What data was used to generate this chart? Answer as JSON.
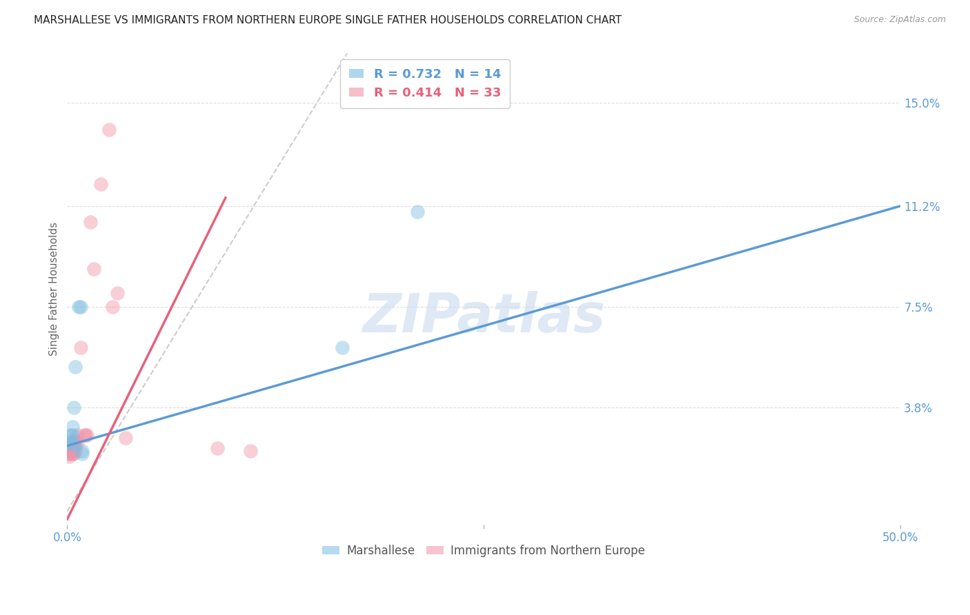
{
  "title": "MARSHALLESE VS IMMIGRANTS FROM NORTHERN EUROPE SINGLE FATHER HOUSEHOLDS CORRELATION CHART",
  "source": "Source: ZipAtlas.com",
  "ylabel_label": "Single Father Households",
  "watermark": "ZIPatlas",
  "legend1_label": "R = 0.732   N = 14",
  "legend2_label": "R = 0.414   N = 33",
  "blue_color": "#7bbde0",
  "pink_color": "#f093a8",
  "blue_line_color": "#5b9bd5",
  "pink_line_color": "#e8607a",
  "diagonal_color": "#cccccc",
  "marshallese_x": [
    0.001,
    0.002,
    0.002,
    0.003,
    0.003,
    0.004,
    0.004,
    0.005,
    0.007,
    0.008,
    0.009,
    0.009,
    0.165,
    0.21
  ],
  "marshallese_y": [
    0.026,
    0.025,
    0.028,
    0.028,
    0.031,
    0.024,
    0.038,
    0.053,
    0.075,
    0.075,
    0.022,
    0.021,
    0.06,
    0.11
  ],
  "northern_europe_x": [
    0.001,
    0.001,
    0.001,
    0.001,
    0.002,
    0.002,
    0.002,
    0.002,
    0.002,
    0.003,
    0.003,
    0.003,
    0.004,
    0.004,
    0.004,
    0.005,
    0.005,
    0.005,
    0.006,
    0.006,
    0.008,
    0.01,
    0.011,
    0.012,
    0.014,
    0.016,
    0.02,
    0.025,
    0.027,
    0.03,
    0.035,
    0.09,
    0.11
  ],
  "northern_europe_y": [
    0.02,
    0.021,
    0.022,
    0.023,
    0.021,
    0.022,
    0.023,
    0.024,
    0.025,
    0.021,
    0.022,
    0.025,
    0.021,
    0.023,
    0.026,
    0.022,
    0.024,
    0.026,
    0.025,
    0.028,
    0.06,
    0.028,
    0.028,
    0.028,
    0.106,
    0.089,
    0.12,
    0.14,
    0.075,
    0.08,
    0.027,
    0.023,
    0.022
  ],
  "xlim": [
    0.0,
    0.5
  ],
  "ylim": [
    -0.005,
    0.168
  ],
  "ytick_vals": [
    0.038,
    0.075,
    0.112,
    0.15
  ],
  "ytick_labels": [
    "3.8%",
    "7.5%",
    "11.2%",
    "15.0%"
  ],
  "xtick_vals": [
    0.0,
    0.25,
    0.5
  ],
  "xtick_labels": [
    "0.0%",
    "",
    "50.0%"
  ],
  "blue_line_x": [
    0.0,
    0.5
  ],
  "blue_line_y": [
    0.024,
    0.112
  ],
  "pink_line_x": [
    0.0,
    0.095
  ],
  "pink_line_y": [
    -0.003,
    0.115
  ],
  "diag_line_x": [
    0.0,
    0.168
  ],
  "diag_line_y": [
    0.0,
    0.168
  ]
}
